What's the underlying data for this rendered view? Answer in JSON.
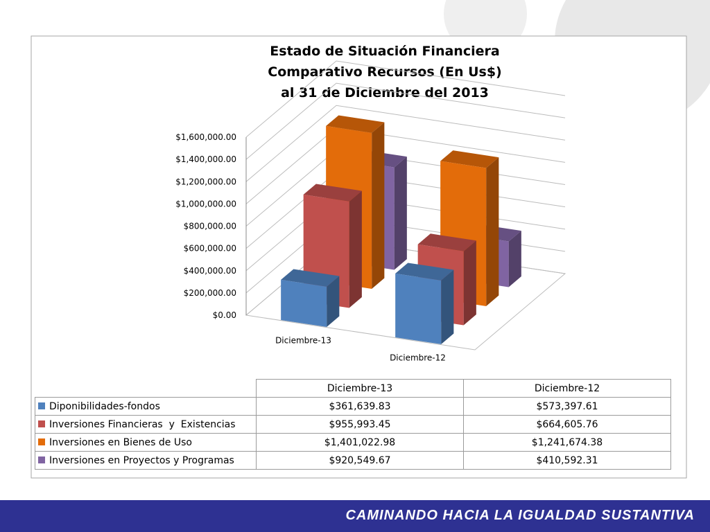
{
  "chart_data": {
    "type": "bar",
    "title": "Estado de Situación Financiera",
    "subtitle": [
      "Comparativo Recursos (En Us$)",
      "al 31 de Diciembre del 2013"
    ],
    "categories": [
      "Diciembre-13",
      "Diciembre-12"
    ],
    "series": [
      {
        "name": "Diponibilidades-fondos",
        "color": "#4f81bd",
        "values": [
          361639.83,
          573397.61
        ],
        "value_labels": [
          "$361,639.83",
          "$573,397.61"
        ]
      },
      {
        "name": "Inversiones Financieras  y  Existencias",
        "color": "#c0504d",
        "values": [
          955993.45,
          664605.76
        ],
        "value_labels": [
          "$955,993.45",
          "$664,605.76"
        ]
      },
      {
        "name": "Inversiones en Bienes de Uso",
        "color": "#e36c0a",
        "values": [
          1401022.98,
          1241674.38
        ],
        "value_labels": [
          "$1,401,022.98",
          "$1,241,674.38"
        ]
      },
      {
        "name": "Inversiones en Proyectos y Programas",
        "color": "#8064a2",
        "values": [
          920549.67,
          410592.31
        ],
        "value_labels": [
          "$920,549.67",
          "$410,592.31"
        ]
      }
    ],
    "ylim": [
      0,
      1600000
    ],
    "yticks": [
      {
        "value": 0,
        "label": "$0.00"
      },
      {
        "value": 200000,
        "label": "$200,000.00"
      },
      {
        "value": 400000,
        "label": "$400,000.00"
      },
      {
        "value": 600000,
        "label": "$600,000.00"
      },
      {
        "value": 800000,
        "label": "$800,000.00"
      },
      {
        "value": 1000000,
        "label": "$1,000,000.00"
      },
      {
        "value": 1200000,
        "label": "$1,200,000.00"
      },
      {
        "value": 1400000,
        "label": "$1,400,000.00"
      },
      {
        "value": 1600000,
        "label": "$1,600,000.00"
      }
    ],
    "grid": true
  },
  "footer": "CAMINANDO HACIA LA IGUALDAD SUSTANTIVA"
}
